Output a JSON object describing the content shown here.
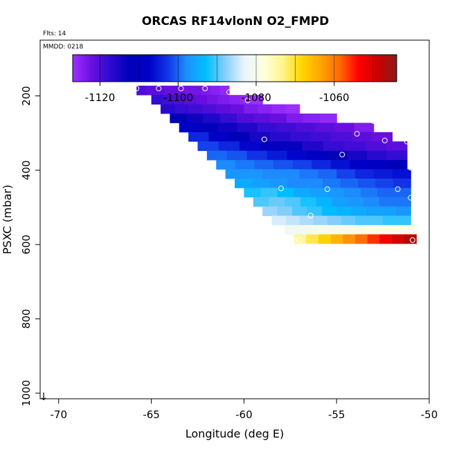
{
  "chart_data": {
    "type": "heatmap",
    "title": "ORCAS RF14vlonN O2_FMPD",
    "flights_label": "Flts: 14",
    "date_label": "MMDD: 0218",
    "xlabel": "Longitude (deg E)",
    "ylabel": "PSXC (mbar)",
    "xlim": [
      -71,
      -50
    ],
    "ylim": [
      1015,
      50
    ],
    "x_ticks": [
      -70,
      -65,
      -60,
      -55,
      -50
    ],
    "x_tick_labels": [
      "-70",
      "-65",
      "-60",
      "-55",
      "-50"
    ],
    "y_ticks": [
      200,
      400,
      600,
      800,
      1000
    ],
    "y_tick_labels": [
      "200",
      "400",
      "600",
      "800",
      "1000"
    ],
    "colorbar": {
      "range": [
        -1127,
        -1044
      ],
      "ticks": [
        -1120,
        -1100,
        -1080,
        -1060
      ],
      "tick_labels": [
        "-1120",
        "-1100",
        "-1080",
        "-1060"
      ],
      "stops": [
        "#9b30ff",
        "#6a0fe0",
        "#2a0bd0",
        "#0000b8",
        "#0000c8",
        "#1436e8",
        "#1e90ff",
        "#00bfff",
        "#87cefa",
        "#e8f4ff",
        "#ffffe0",
        "#fff68f",
        "#ffd700",
        "#ffa500",
        "#ff6a00",
        "#ff0000",
        "#cd0000",
        "#8b1a1a"
      ]
    },
    "rows": [
      {
        "p": 185,
        "x0": -65.8,
        "x1": -60.8,
        "values": [
          -1120,
          -1121,
          -1121,
          -1122,
          -1122,
          -1123,
          -1123,
          -1124,
          -1125,
          -1126
        ]
      },
      {
        "p": 210,
        "x0": -65.0,
        "x1": -59.0,
        "values": [
          -1118,
          -1119,
          -1120,
          -1121,
          -1122,
          -1123,
          -1124,
          -1125,
          -1126,
          -1127
        ]
      },
      {
        "p": 235,
        "x0": -64.5,
        "x1": -57.0,
        "values": [
          -1117,
          -1118,
          -1119,
          -1120,
          -1121,
          -1122,
          -1124,
          -1125,
          -1126,
          -1127
        ]
      },
      {
        "p": 260,
        "x0": -64.0,
        "x1": -55.0,
        "values": [
          -1112,
          -1114,
          -1116,
          -1118,
          -1120,
          -1121,
          -1122,
          -1124,
          -1125,
          -1126
        ]
      },
      {
        "p": 285,
        "x0": -63.5,
        "x1": -53.0,
        "values": [
          -1108,
          -1111,
          -1114,
          -1116,
          -1118,
          -1119,
          -1120,
          -1121,
          -1122,
          -1124
        ]
      },
      {
        "p": 310,
        "x0": -63.0,
        "x1": -52.0,
        "values": [
          -1104,
          -1108,
          -1112,
          -1115,
          -1117,
          -1118,
          -1119,
          -1120,
          -1121,
          -1122
        ]
      },
      {
        "p": 335,
        "x0": -62.5,
        "x1": -51.2,
        "values": [
          -1102,
          -1104,
          -1107,
          -1110,
          -1113,
          -1116,
          -1118,
          -1119,
          -1120,
          -1121
        ]
      },
      {
        "p": 360,
        "x0": -62.0,
        "x1": -51.2,
        "values": [
          -1100,
          -1101,
          -1103,
          -1105,
          -1107,
          -1110,
          -1113,
          -1115,
          -1117,
          -1118
        ]
      },
      {
        "p": 385,
        "x0": -61.5,
        "x1": -51.2,
        "values": [
          -1098,
          -1099,
          -1100,
          -1101,
          -1102,
          -1104,
          -1106,
          -1108,
          -1110,
          -1112
        ]
      },
      {
        "p": 410,
        "x0": -61.0,
        "x1": -51.0,
        "values": [
          -1097,
          -1097,
          -1098,
          -1098,
          -1099,
          -1100,
          -1102,
          -1104,
          -1105,
          -1106
        ]
      },
      {
        "p": 435,
        "x0": -60.5,
        "x1": -51.0,
        "values": [
          -1095,
          -1096,
          -1097,
          -1098,
          -1098,
          -1099,
          -1100,
          -1101,
          -1102,
          -1103
        ]
      },
      {
        "p": 460,
        "x0": -60.0,
        "x1": -51.0,
        "values": [
          -1092,
          -1091,
          -1093,
          -1095,
          -1096,
          -1097,
          -1098,
          -1099,
          -1100,
          -1100
        ]
      },
      {
        "p": 485,
        "x0": -59.5,
        "x1": -51.0,
        "values": [
          -1090,
          -1089,
          -1090,
          -1092,
          -1094,
          -1096,
          -1097,
          -1098,
          -1099,
          -1099
        ]
      },
      {
        "p": 510,
        "x0": -59.0,
        "x1": -51.0,
        "values": [
          -1087,
          -1088,
          -1090,
          -1091,
          -1093,
          -1094,
          -1095,
          -1096,
          -1096,
          -1097
        ]
      },
      {
        "p": 535,
        "x0": -58.5,
        "x1": -51.0,
        "values": [
          -1084,
          -1085,
          -1086,
          -1087,
          -1088,
          -1089,
          -1090,
          -1090,
          -1091,
          -1091
        ]
      },
      {
        "p": 560,
        "x0": -57.8,
        "x1": -50.7,
        "values": [
          -1081,
          -1081,
          -1080,
          -1080,
          -1080,
          -1080,
          -1079,
          -1079,
          -1079,
          -1079
        ]
      },
      {
        "p": 585,
        "x0": -57.3,
        "x1": -50.7,
        "values": [
          -1074,
          -1071,
          -1068,
          -1065,
          -1062,
          -1059,
          -1056,
          -1053,
          -1050,
          -1047
        ]
      }
    ],
    "markers": [
      {
        "x": -65.8,
        "p": 180
      },
      {
        "x": -64.6,
        "p": 180
      },
      {
        "x": -63.4,
        "p": 180
      },
      {
        "x": -62.1,
        "p": 180
      },
      {
        "x": -60.8,
        "p": 190
      },
      {
        "x": -59.8,
        "p": 212
      },
      {
        "x": -53.0,
        "p": 268
      },
      {
        "x": -53.9,
        "p": 302
      },
      {
        "x": -58.9,
        "p": 317
      },
      {
        "x": -52.4,
        "p": 320
      },
      {
        "x": -51.2,
        "p": 323
      },
      {
        "x": -54.7,
        "p": 358
      },
      {
        "x": -51.0,
        "p": 393
      },
      {
        "x": -58.0,
        "p": 449
      },
      {
        "x": -55.5,
        "p": 451
      },
      {
        "x": -51.7,
        "p": 451
      },
      {
        "x": -51.0,
        "p": 474
      },
      {
        "x": -56.4,
        "p": 522
      },
      {
        "x": -50.9,
        "p": 562
      },
      {
        "x": -57.3,
        "p": 589
      },
      {
        "x": -57.0,
        "p": 587
      },
      {
        "x": -50.9,
        "p": 588
      }
    ],
    "arrow_label": "↓"
  }
}
